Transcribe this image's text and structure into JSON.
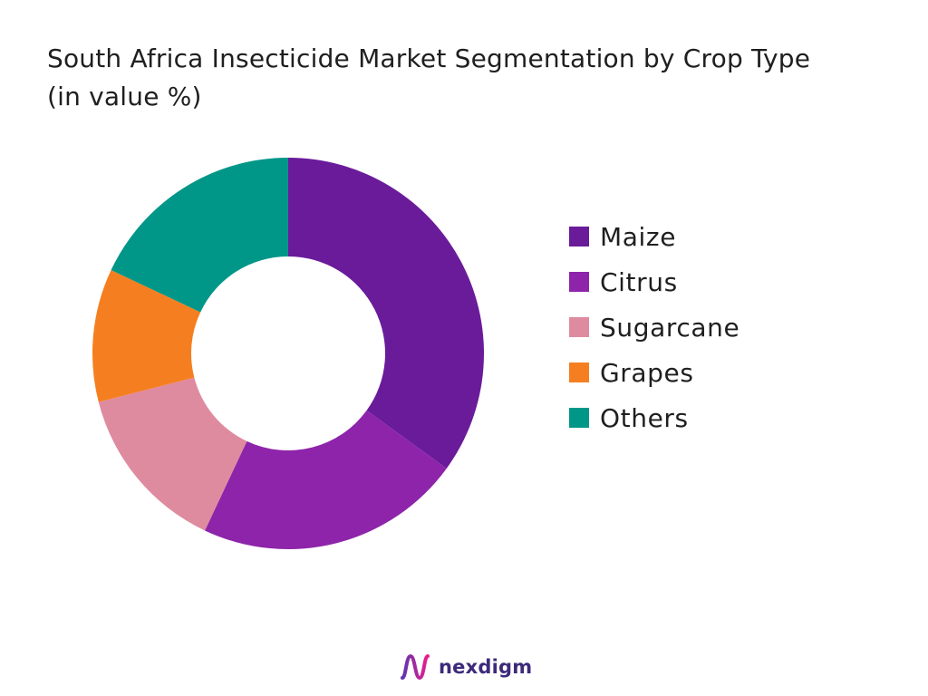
{
  "title_lines": [
    "South Africa Insecticide Market Segmentation by Crop Type",
    "(in value %)"
  ],
  "chart_data": {
    "type": "pie",
    "variant": "donut",
    "title": "South Africa Insecticide Market Segmentation by Crop Type (in value %)",
    "categories": [
      "Maize",
      "Citrus",
      "Sugarcane",
      "Grapes",
      "Others"
    ],
    "values": [
      35,
      22,
      14,
      11,
      18
    ],
    "colors": [
      "#6a1b9a",
      "#8e24aa",
      "#de8ba0",
      "#f57f20",
      "#009688"
    ],
    "legend_position": "right"
  },
  "brand": {
    "name": "nexdigm",
    "text_color": "#3d2a7a",
    "logo_colors": [
      "#5e35b1",
      "#e91e8c"
    ]
  }
}
